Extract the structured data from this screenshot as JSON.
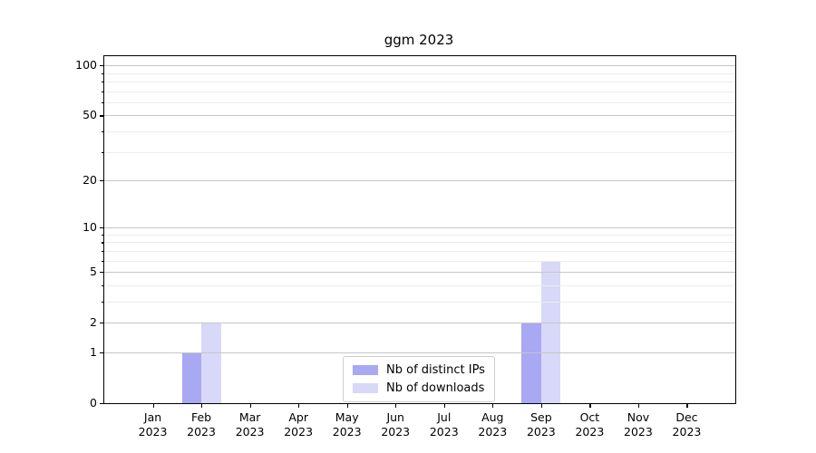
{
  "chart_data": {
    "type": "bar",
    "title": "ggm 2023",
    "categories": [
      "Jan",
      "Feb",
      "Mar",
      "Apr",
      "May",
      "Jun",
      "Jul",
      "Aug",
      "Sep",
      "Oct",
      "Nov",
      "Dec"
    ],
    "year_label": "2023",
    "series": [
      {
        "name": "Nb of distinct IPs",
        "color": "#a8a8f3",
        "values": [
          0,
          1,
          0,
          0,
          0,
          0,
          0,
          0,
          2,
          0,
          0,
          0
        ]
      },
      {
        "name": "Nb of downloads",
        "color": "#d8d8f8",
        "values": [
          0,
          2,
          0,
          0,
          0,
          0,
          0,
          0,
          6,
          0,
          0,
          0
        ]
      }
    ],
    "xlabel": "",
    "ylabel": "",
    "y_scale": "log1p",
    "y_major_ticks": [
      0,
      1,
      2,
      5,
      10,
      20,
      50,
      100
    ],
    "y_minor_ticks": [
      3,
      4,
      6,
      7,
      8,
      9,
      30,
      40,
      60,
      70,
      80,
      90
    ],
    "ylim": [
      0,
      113
    ],
    "grid": "horizontal",
    "legend_position": "lower-center-inside"
  },
  "colors": {
    "grid_major": "#c6c6c6",
    "grid_minor": "#ededed",
    "axis": "#000000",
    "legend_border": "#cccccc",
    "background": "#ffffff"
  }
}
